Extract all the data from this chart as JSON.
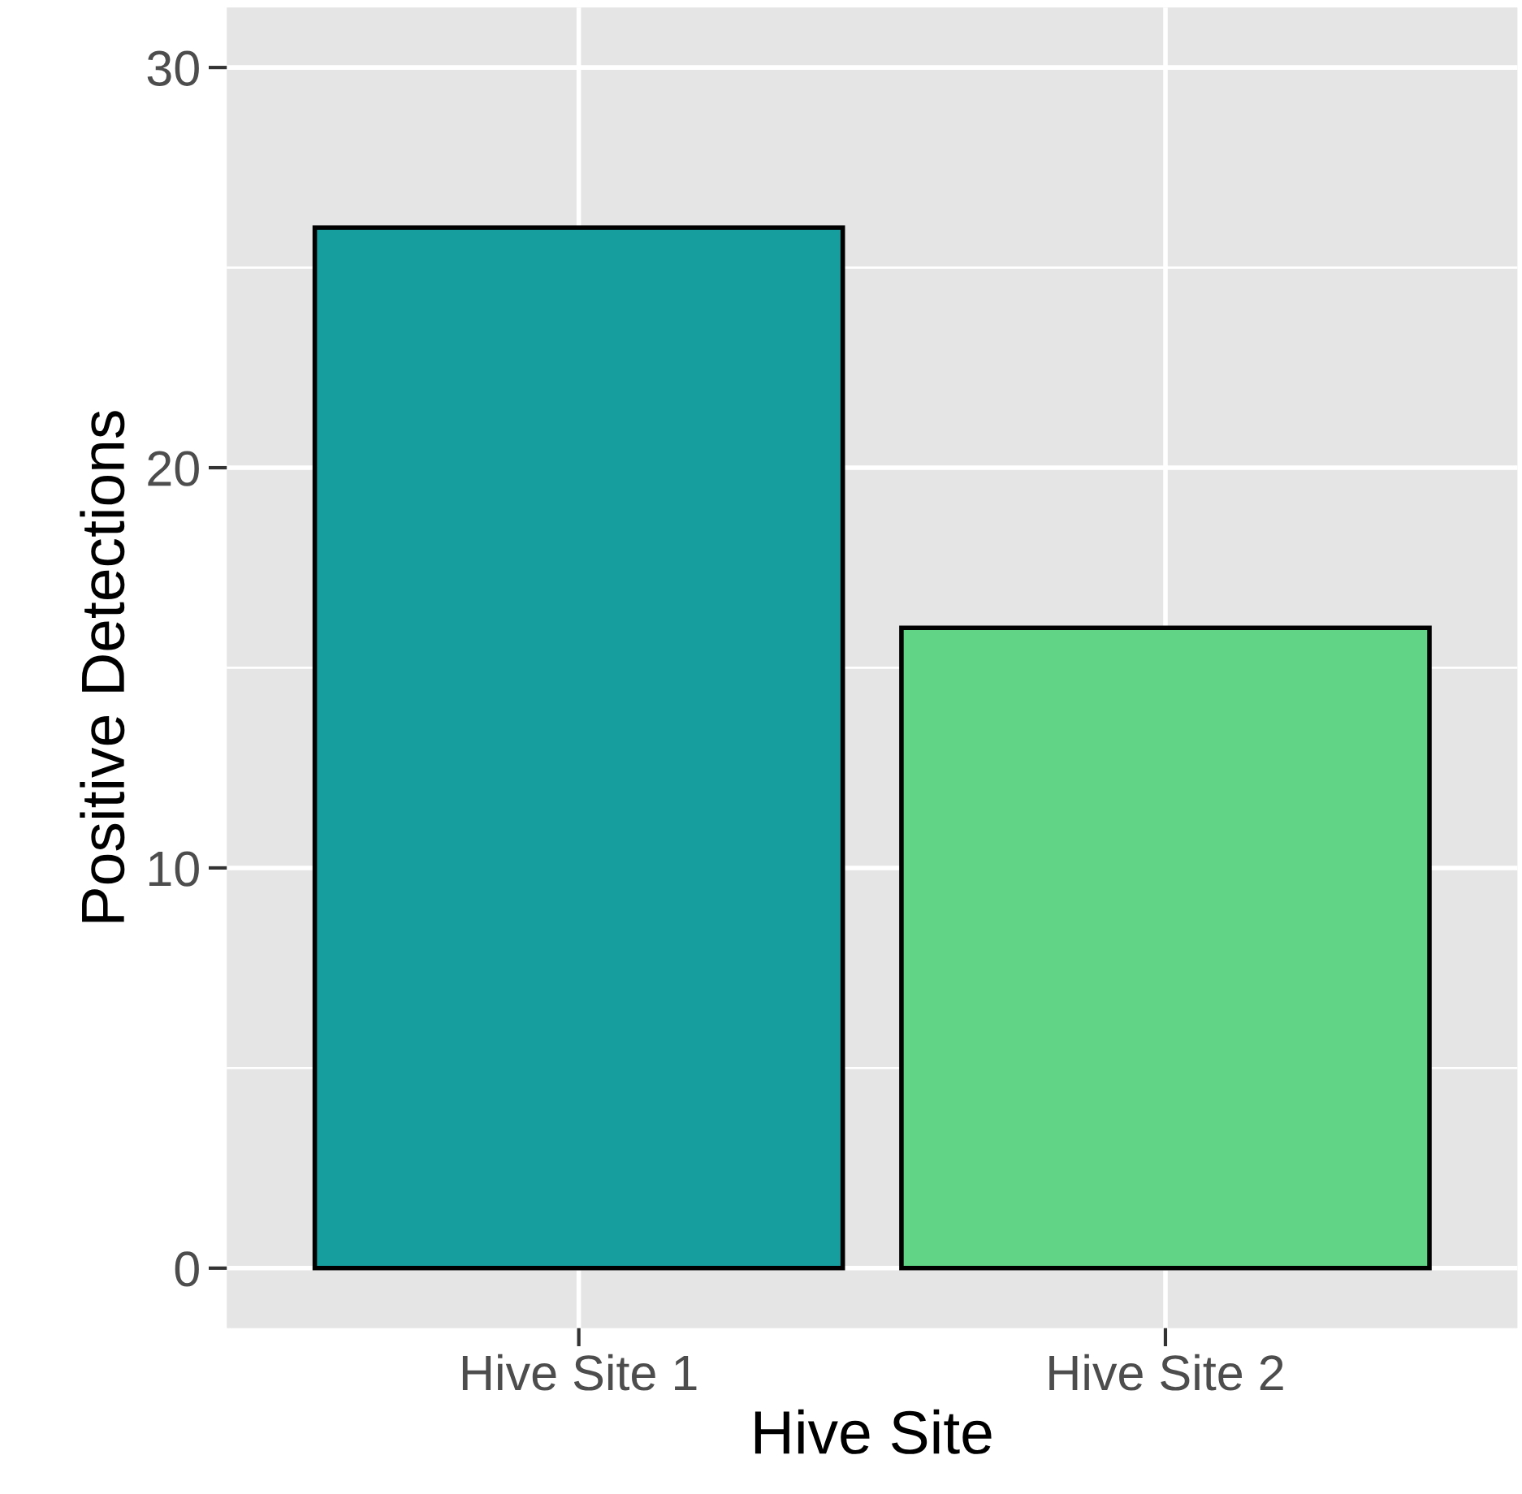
{
  "chart_data": {
    "type": "bar",
    "xlabel": "Hive Site",
    "ylabel": "Positive Detections",
    "categories": [
      "Hive Site 1",
      "Hive Site 2"
    ],
    "values": [
      26,
      16
    ],
    "colors": [
      "#169e9f",
      "#61d486"
    ],
    "ylim": [
      -1.5,
      31.5
    ],
    "yticks": [
      0,
      10,
      20,
      30
    ],
    "grid": true
  }
}
